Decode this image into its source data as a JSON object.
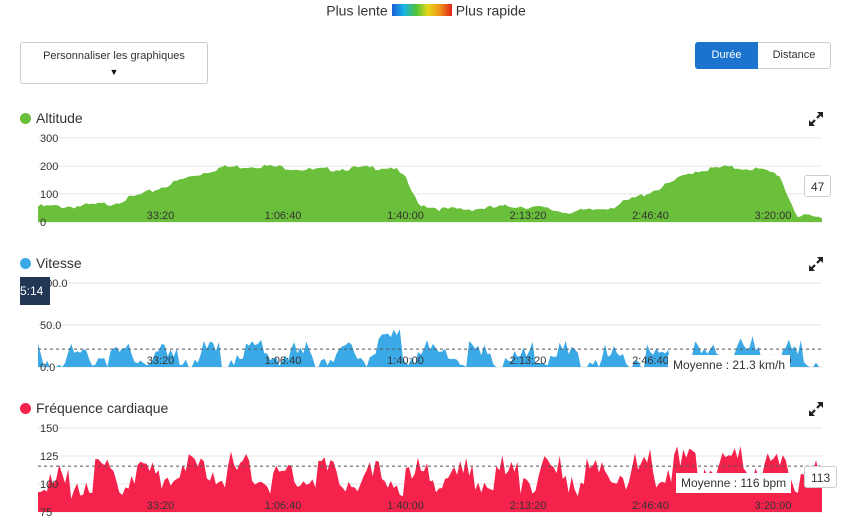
{
  "legend": {
    "slow_label": "Plus lente",
    "fast_label": "Plus rapide"
  },
  "customize": {
    "label": "Personnaliser les graphiques",
    "caret": "▼"
  },
  "toggle": {
    "duration_label": "Durée",
    "distance_label": "Distance",
    "active": "duration"
  },
  "colors": {
    "altitude": "#6abf3b",
    "speed": "#3ba9e6",
    "heart_rate": "#f5224c",
    "accent": "#1a73cc"
  },
  "charts": {
    "altitude": {
      "title": "Altitude",
      "current_value": "47"
    },
    "speed": {
      "title": "Vitesse",
      "average_label": "Moyenne : 21.3 km/h",
      "tooltip_value": "5:14"
    },
    "heart_rate": {
      "title": "Fréquence cardiaque",
      "average_label": "Moyenne : 116 bpm",
      "current_value": "113"
    }
  },
  "chart_data": [
    {
      "type": "area",
      "title": "Altitude",
      "x_tick_labels": [
        "33:20",
        "1:06:40",
        "1:40:00",
        "2:13:20",
        "2:46:40",
        "3:20:00"
      ],
      "x_ticks_seconds": [
        2000,
        4000,
        6000,
        8000,
        10000,
        12000
      ],
      "xlim": [
        0,
        12800
      ],
      "ylim": [
        0,
        300
      ],
      "y_ticks": [
        0,
        100,
        200,
        300
      ],
      "y_tick_labels": [
        "0",
        "100",
        "200",
        "300"
      ],
      "x": [
        0,
        600,
        1200,
        1800,
        2400,
        3000,
        3600,
        4000,
        4500,
        5000,
        5400,
        5800,
        6000,
        6200,
        6600,
        7000,
        7400,
        7800,
        8200,
        8600,
        9000,
        9400,
        9800,
        10200,
        10700,
        11200,
        11700,
        12100,
        12200,
        12400,
        12800
      ],
      "values": [
        60,
        60,
        70,
        110,
        160,
        200,
        205,
        200,
        190,
        195,
        198,
        200,
        160,
        70,
        50,
        50,
        55,
        62,
        55,
        40,
        45,
        60,
        95,
        130,
        185,
        200,
        195,
        175,
        120,
        25,
        20
      ],
      "grid": true,
      "current_value": 47
    },
    {
      "type": "area",
      "title": "Vitesse",
      "x_tick_labels": [
        "33:20",
        "1:06:40",
        "1:40:00",
        "2:13:20",
        "2:46:40",
        "3:20:00"
      ],
      "x_ticks_seconds": [
        2000,
        4000,
        6000,
        8000,
        10000,
        12000
      ],
      "xlim": [
        0,
        12800
      ],
      "ylim": [
        0,
        100
      ],
      "y_ticks": [
        0,
        50,
        100
      ],
      "y_tick_labels": [
        "0.0",
        "50.0",
        "100.0"
      ],
      "x": [
        0,
        500,
        1000,
        1500,
        2000,
        2500,
        3000,
        3500,
        4000,
        4500,
        5000,
        5500,
        5800,
        6000,
        6500,
        7000,
        7500,
        8000,
        8500,
        9000,
        9500,
        10000,
        10500,
        11000,
        11500,
        12000,
        12500,
        12800
      ],
      "values": [
        20,
        22,
        24,
        21,
        20,
        22,
        23,
        26,
        24,
        22,
        21,
        24,
        45,
        30,
        25,
        22,
        20,
        21,
        23,
        20,
        19,
        18,
        21,
        25,
        28,
        27,
        23,
        15
      ],
      "average": 21.3,
      "grid": true
    },
    {
      "type": "area",
      "title": "Fréquence cardiaque",
      "x_tick_labels": [
        "33:20",
        "1:06:40",
        "1:40:00",
        "2:13:20",
        "2:46:40",
        "3:20:00"
      ],
      "x_ticks_seconds": [
        2000,
        4000,
        6000,
        8000,
        10000,
        12000
      ],
      "xlim": [
        0,
        12800
      ],
      "ylim": [
        75,
        150
      ],
      "y_ticks": [
        75,
        100,
        125,
        150
      ],
      "y_tick_labels": [
        "75",
        "100",
        "125",
        "150"
      ],
      "x": [
        0,
        500,
        1000,
        1500,
        2000,
        2500,
        3000,
        3500,
        4000,
        4500,
        5000,
        5500,
        6000,
        6500,
        7000,
        7500,
        8000,
        8500,
        9000,
        9500,
        10000,
        10500,
        11000,
        11500,
        12000,
        12500,
        12800
      ],
      "values": [
        105,
        110,
        115,
        118,
        116,
        120,
        122,
        118,
        115,
        120,
        117,
        113,
        112,
        118,
        115,
        118,
        116,
        117,
        115,
        120,
        123,
        125,
        124,
        126,
        122,
        118,
        113
      ],
      "average": 116,
      "grid": true,
      "current_value": 113
    }
  ]
}
